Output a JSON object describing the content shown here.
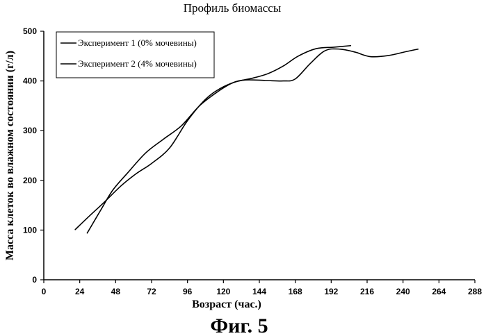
{
  "chart_data": {
    "type": "line",
    "title": "Профиль биомассы",
    "xlabel": "Возраст (час.)",
    "ylabel": "Масса клеток во влажном состоянии (г/л)",
    "xlim": [
      0,
      288
    ],
    "ylim": [
      0,
      500
    ],
    "x_ticks": [
      0,
      24,
      48,
      72,
      96,
      120,
      144,
      168,
      192,
      216,
      240,
      264,
      288
    ],
    "y_ticks": [
      0,
      100,
      200,
      300,
      400,
      500
    ],
    "grid": false,
    "legend_position": "top-left",
    "series": [
      {
        "name": "Эксперимент 1 (0% мочевины)",
        "color": "#000000",
        "points": [
          [
            21,
            101
          ],
          [
            30,
            127
          ],
          [
            40,
            155
          ],
          [
            52,
            190
          ],
          [
            62,
            214
          ],
          [
            72,
            234
          ],
          [
            84,
            265
          ],
          [
            96,
            320
          ],
          [
            108,
            363
          ],
          [
            118,
            385
          ],
          [
            128,
            398
          ],
          [
            140,
            406
          ],
          [
            150,
            415
          ],
          [
            160,
            430
          ],
          [
            170,
            450
          ],
          [
            182,
            465
          ],
          [
            194,
            468
          ],
          [
            205,
            471
          ]
        ]
      },
      {
        "name": "Эксперимент 2 (4% мочевины)",
        "color": "#000000",
        "points": [
          [
            29,
            94
          ],
          [
            38,
            140
          ],
          [
            46,
            180
          ],
          [
            56,
            215
          ],
          [
            68,
            255
          ],
          [
            80,
            283
          ],
          [
            92,
            310
          ],
          [
            104,
            350
          ],
          [
            116,
            378
          ],
          [
            126,
            396
          ],
          [
            135,
            402
          ],
          [
            148,
            401
          ],
          [
            160,
            400
          ],
          [
            168,
            404
          ],
          [
            178,
            435
          ],
          [
            188,
            461
          ],
          [
            198,
            464
          ],
          [
            208,
            458
          ],
          [
            218,
            449
          ],
          [
            230,
            451
          ],
          [
            242,
            459
          ],
          [
            250,
            464
          ]
        ]
      }
    ]
  },
  "figure_label": "Фиг. 5"
}
